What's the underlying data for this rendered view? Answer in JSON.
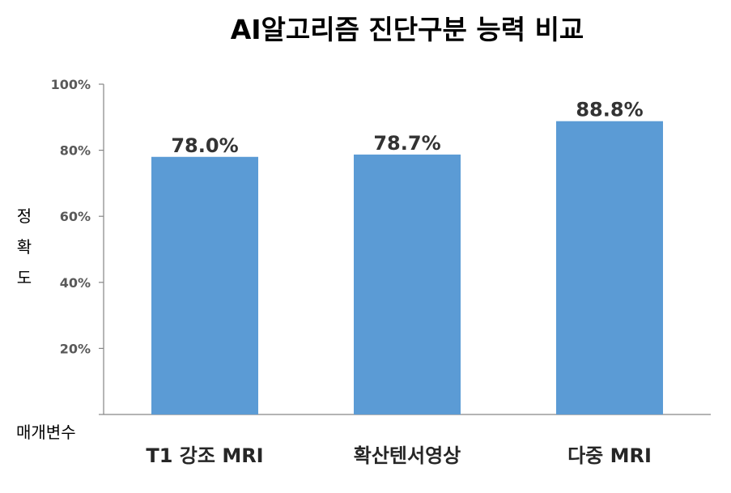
{
  "chart_data": {
    "type": "bar",
    "title": "AI알고리즘 진단구분 능력 비교",
    "xlabel": "매개변수",
    "ylabel": "정확도",
    "categories": [
      "T1 강조 MRI",
      "확산텐서영상",
      "다중 MRI"
    ],
    "values": [
      78.0,
      78.7,
      88.8
    ],
    "data_labels": [
      "78.0%",
      "78.7%",
      "88.8%"
    ],
    "y_ticks": [
      "20%",
      "40%",
      "60%",
      "80%",
      "100%"
    ],
    "ylim": [
      0,
      100
    ],
    "grid": false,
    "legend": "none",
    "bar_color": "#5b9bd5"
  }
}
